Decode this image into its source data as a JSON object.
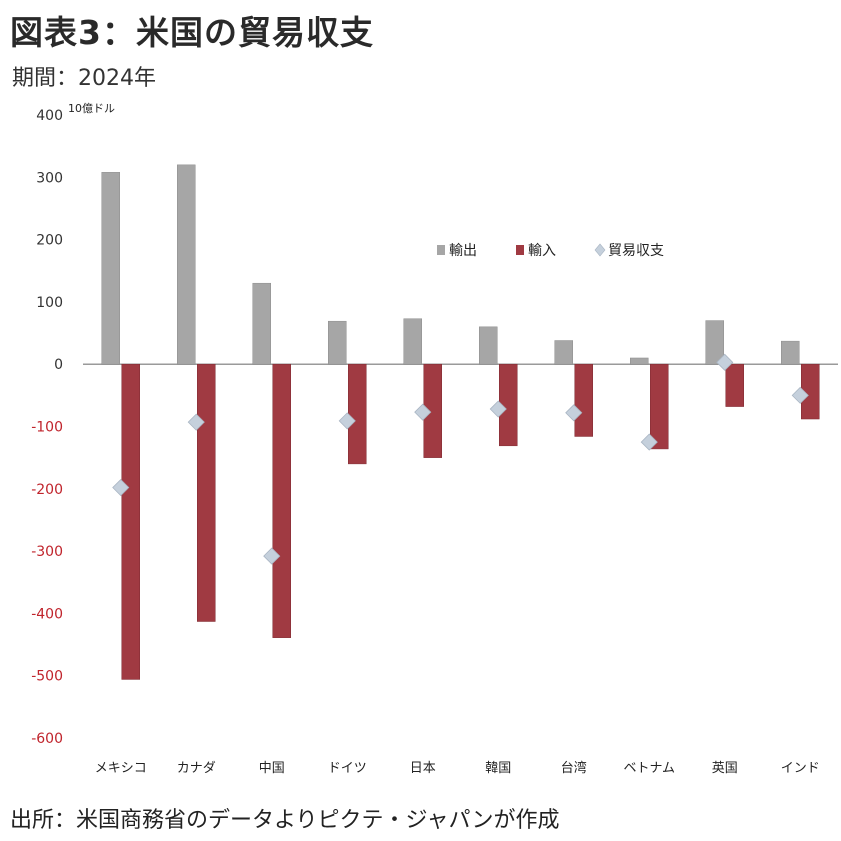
{
  "title": "図表3：米国の貿易収支",
  "period": "期間：2024年",
  "source": "出所：米国商務省のデータよりピクテ・ジャパンが作成",
  "colors": {
    "export": "#a6a6a6",
    "import": "#a03a42",
    "balance": "#c5d0dc",
    "negative_tick": "#c0242c",
    "positive_tick": "#333333"
  },
  "chart_data": {
    "type": "bar",
    "unit_label": "10億ドル",
    "categories": [
      "メキシコ",
      "カナダ",
      "中国",
      "ドイツ",
      "日本",
      "韓国",
      "台湾",
      "ベトナム",
      "英国",
      "インド"
    ],
    "series": [
      {
        "name": "輸出",
        "type": "bar",
        "values": [
          308,
          320,
          130,
          69,
          73,
          60,
          38,
          10,
          70,
          37
        ]
      },
      {
        "name": "輸入",
        "type": "bar",
        "values": [
          -506,
          -413,
          -439,
          -160,
          -150,
          -131,
          -116,
          -136,
          -68,
          -88
        ]
      },
      {
        "name": "貿易収支",
        "type": "scatter",
        "values": [
          -198,
          -93,
          -308,
          -91,
          -77,
          -72,
          -78,
          -125,
          3,
          -50
        ]
      }
    ],
    "ylim": [
      -600,
      400
    ],
    "yticks": [
      400,
      300,
      200,
      100,
      0,
      -100,
      -200,
      -300,
      -400,
      -500,
      -600
    ],
    "ytick_labels": [
      "400",
      "300",
      "200",
      "100",
      "0",
      "-100",
      "-200",
      "-300",
      "-400",
      "-500",
      "-600"
    ],
    "legend_position": "upper-right"
  }
}
